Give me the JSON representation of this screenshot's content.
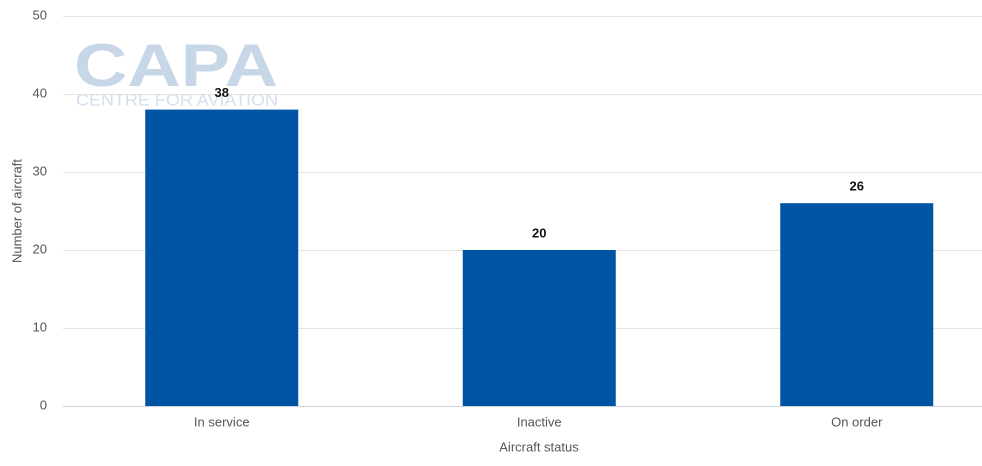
{
  "watermark": {
    "logo": "CAPA",
    "tagline": "CENTRE FOR AVIATION"
  },
  "chart_data": {
    "type": "bar",
    "x_label": "Aircraft status",
    "y_label": "Number of aircraft",
    "categories": [
      "In service",
      "Inactive",
      "On order"
    ],
    "values": [
      38,
      20,
      26
    ],
    "color": "#0054a4",
    "ylim": [
      0,
      50
    ],
    "yticks": [
      0,
      10,
      20,
      30,
      40,
      50
    ],
    "grid": true
  }
}
